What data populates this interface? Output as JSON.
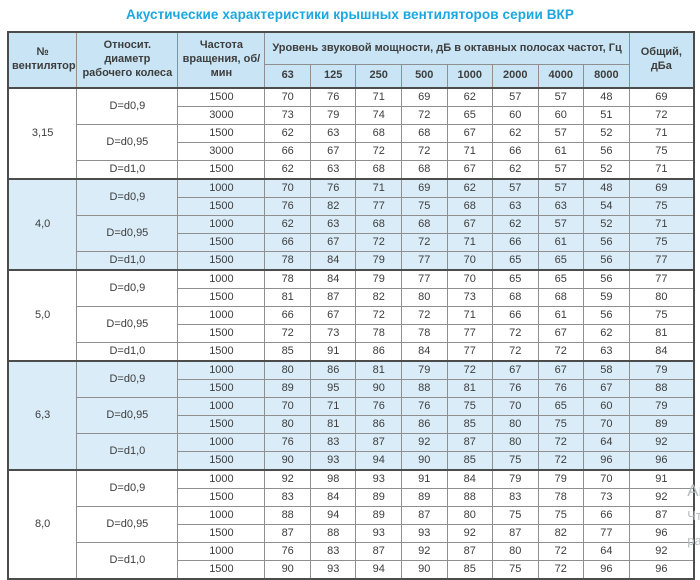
{
  "page": {
    "title": "Акустические характеристики крышных вентиляторов серии ВКР"
  },
  "colors": {
    "title_accent": "#1ba7e0",
    "header_bg": "#c9e5f5",
    "shaded_group_bg": "#d9ecf8",
    "border_dark": "#4c4c4c",
    "border_light": "#8f8f8f",
    "text": "#3d3d3d",
    "watermark": "#b6bec0"
  },
  "watermark": {
    "lines": [
      "Ак",
      "Чт",
      "ра"
    ]
  },
  "table": {
    "headers": {
      "fan_number": "№ вентилятора",
      "diameter": "Относит. диаметр рабочего колеса",
      "speed": "Частота вращения, об/мин",
      "bands_group": "Уровень звуковой мощности, дБ в октавных полосах частот, Гц",
      "total": "Общий, дБа",
      "bands": [
        "63",
        "125",
        "250",
        "500",
        "1000",
        "2000",
        "4000",
        "8000"
      ]
    },
    "groups": [
      {
        "fan": "3,15",
        "shaded": false,
        "subgroups": [
          {
            "diameter": "D=d0,9",
            "rows": [
              {
                "speed": "1500",
                "values": [
                  70,
                  76,
                  71,
                  69,
                  62,
                  57,
                  57,
                  48
                ],
                "total": 69
              },
              {
                "speed": "3000",
                "values": [
                  73,
                  79,
                  74,
                  72,
                  65,
                  60,
                  60,
                  51
                ],
                "total": 72
              }
            ]
          },
          {
            "diameter": "D=d0,95",
            "rows": [
              {
                "speed": "1500",
                "values": [
                  62,
                  63,
                  68,
                  68,
                  67,
                  62,
                  57,
                  52
                ],
                "total": 71
              },
              {
                "speed": "3000",
                "values": [
                  66,
                  67,
                  72,
                  72,
                  71,
                  66,
                  61,
                  56
                ],
                "total": 75
              }
            ]
          },
          {
            "diameter": "D=d1,0",
            "rows": [
              {
                "speed": "1500",
                "values": [
                  62,
                  63,
                  68,
                  68,
                  67,
                  62,
                  57,
                  52
                ],
                "total": 71
              }
            ]
          }
        ]
      },
      {
        "fan": "4,0",
        "shaded": true,
        "subgroups": [
          {
            "diameter": "D=d0,9",
            "rows": [
              {
                "speed": "1000",
                "values": [
                  70,
                  76,
                  71,
                  69,
                  62,
                  57,
                  57,
                  48
                ],
                "total": 69
              },
              {
                "speed": "1500",
                "values": [
                  76,
                  82,
                  77,
                  75,
                  68,
                  63,
                  63,
                  54
                ],
                "total": 75
              }
            ]
          },
          {
            "diameter": "D=d0,95",
            "rows": [
              {
                "speed": "1000",
                "values": [
                  62,
                  63,
                  68,
                  68,
                  67,
                  62,
                  57,
                  52
                ],
                "total": 71
              },
              {
                "speed": "1500",
                "values": [
                  66,
                  67,
                  72,
                  72,
                  71,
                  66,
                  61,
                  56
                ],
                "total": 75
              }
            ]
          },
          {
            "diameter": "D=d1,0",
            "rows": [
              {
                "speed": "1500",
                "values": [
                  78,
                  84,
                  79,
                  77,
                  70,
                  65,
                  65,
                  56
                ],
                "total": 77
              }
            ]
          }
        ]
      },
      {
        "fan": "5,0",
        "shaded": false,
        "subgroups": [
          {
            "diameter": "D=d0,9",
            "rows": [
              {
                "speed": "1000",
                "values": [
                  78,
                  84,
                  79,
                  77,
                  70,
                  65,
                  65,
                  56
                ],
                "total": 77
              },
              {
                "speed": "1500",
                "values": [
                  81,
                  87,
                  82,
                  80,
                  73,
                  68,
                  68,
                  59
                ],
                "total": 80
              }
            ]
          },
          {
            "diameter": "D=d0,95",
            "rows": [
              {
                "speed": "1000",
                "values": [
                  66,
                  67,
                  72,
                  72,
                  71,
                  66,
                  61,
                  56
                ],
                "total": 75
              },
              {
                "speed": "1500",
                "values": [
                  72,
                  73,
                  78,
                  78,
                  77,
                  72,
                  67,
                  62
                ],
                "total": 81
              }
            ]
          },
          {
            "diameter": "D=d1,0",
            "rows": [
              {
                "speed": "1500",
                "values": [
                  85,
                  91,
                  86,
                  84,
                  77,
                  72,
                  72,
                  63
                ],
                "total": 84
              }
            ]
          }
        ]
      },
      {
        "fan": "6,3",
        "shaded": true,
        "subgroups": [
          {
            "diameter": "D=d0,9",
            "rows": [
              {
                "speed": "1000",
                "values": [
                  80,
                  86,
                  81,
                  79,
                  72,
                  67,
                  67,
                  58
                ],
                "total": 79
              },
              {
                "speed": "1500",
                "values": [
                  89,
                  95,
                  90,
                  88,
                  81,
                  76,
                  76,
                  67
                ],
                "total": 88
              }
            ]
          },
          {
            "diameter": "D=d0,95",
            "rows": [
              {
                "speed": "1000",
                "values": [
                  70,
                  71,
                  76,
                  76,
                  75,
                  70,
                  65,
                  60
                ],
                "total": 79
              },
              {
                "speed": "1500",
                "values": [
                  80,
                  81,
                  86,
                  86,
                  85,
                  80,
                  75,
                  70
                ],
                "total": 89
              }
            ]
          },
          {
            "diameter": "D=d1,0",
            "rows": [
              {
                "speed": "1000",
                "values": [
                  76,
                  83,
                  87,
                  92,
                  87,
                  80,
                  72,
                  64
                ],
                "total": 92
              },
              {
                "speed": "1500",
                "values": [
                  90,
                  93,
                  94,
                  90,
                  85,
                  75,
                  72,
                  96
                ],
                "total": 96
              }
            ]
          }
        ]
      },
      {
        "fan": "8,0",
        "shaded": false,
        "subgroups": [
          {
            "diameter": "D=d0,9",
            "rows": [
              {
                "speed": "1000",
                "values": [
                  92,
                  98,
                  93,
                  91,
                  84,
                  79,
                  79,
                  70
                ],
                "total": 91
              },
              {
                "speed": "1500",
                "values": [
                  83,
                  84,
                  89,
                  89,
                  88,
                  83,
                  78,
                  73
                ],
                "total": 92
              }
            ]
          },
          {
            "diameter": "D=d0,95",
            "rows": [
              {
                "speed": "1000",
                "values": [
                  88,
                  94,
                  89,
                  87,
                  80,
                  75,
                  75,
                  66
                ],
                "total": 87
              },
              {
                "speed": "1500",
                "values": [
                  87,
                  88,
                  93,
                  93,
                  92,
                  87,
                  82,
                  77
                ],
                "total": 96
              }
            ]
          },
          {
            "diameter": "D=d1,0",
            "rows": [
              {
                "speed": "1000",
                "values": [
                  76,
                  83,
                  87,
                  92,
                  87,
                  80,
                  72,
                  64
                ],
                "total": 92
              },
              {
                "speed": "1500",
                "values": [
                  90,
                  93,
                  94,
                  90,
                  85,
                  75,
                  72,
                  96
                ],
                "total": 96
              }
            ]
          }
        ]
      }
    ]
  }
}
